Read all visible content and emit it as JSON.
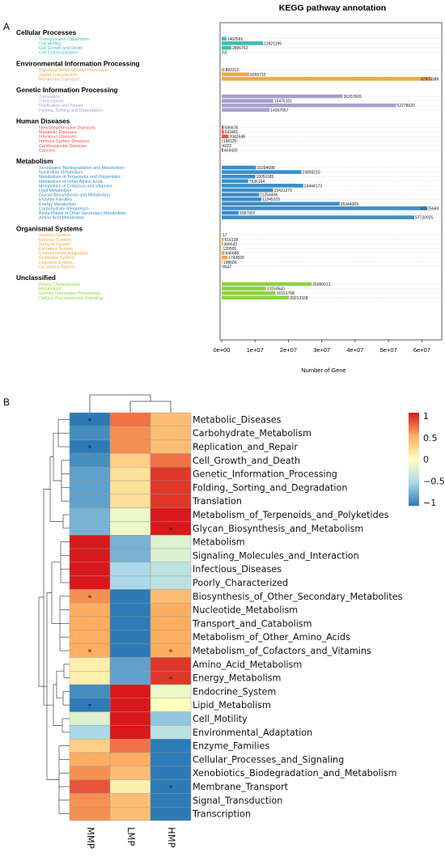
{
  "panel_a_letter": "A",
  "panel_b_letter": "B",
  "chart_data": [
    {
      "type": "bar",
      "orientation": "horizontal",
      "title": "KEGG pathway annotation",
      "xlabel": "Number of Gene",
      "xlim": [
        0,
        65000000
      ],
      "xticks": [
        "0e+00",
        "1e+07",
        "2e+07",
        "3e+07",
        "4e+07",
        "5e+07",
        "6e+07"
      ],
      "groups": [
        {
          "name": "Cellular Processes",
          "color": "#3dbfb3",
          "items": [
            {
              "label": "Transport and Catabolism",
              "value": 1402565
            },
            {
              "label": "Cell Motility",
              "value": 12421195
            },
            {
              "label": "Cell Growth and Death",
              "value": 2896762
            },
            {
              "label": "Cell Communication",
              "value": 53
            }
          ]
        },
        {
          "name": "Environmental Information Processing",
          "color": "#f5a745",
          "items": [
            {
              "label": "Signaling Molecules and Interaction",
              "value": 882212
            },
            {
              "label": "Signal Transduction",
              "value": 8269715
            },
            {
              "label": "Membrane Transport",
              "value": 62903388
            }
          ]
        },
        {
          "name": "Genetic Information Processing",
          "color": "#a89fcc",
          "items": [
            {
              "label": "Translation",
              "value": 36267665
            },
            {
              "label": "Transcription",
              "value": 15476101
            },
            {
              "label": "Replication and Repair",
              "value": 52278620
            },
            {
              "label": "Folding, Sorting and Degradation",
              "value": 14367057
            }
          ]
        },
        {
          "name": "Human Diseases",
          "color": "#e8534a",
          "items": [
            {
              "label": "Neurodegenerative Diseases",
              "value": 595678
            },
            {
              "label": "Metabolic Diseases",
              "value": 643491
            },
            {
              "label": "Infectious Diseases",
              "value": 2042648
            },
            {
              "label": "Immune System Diseases",
              "value": 196130
            },
            {
              "label": "Cardiovascular Diseases",
              "value": 4322
            },
            {
              "label": "Cancers",
              "value": 459420
            }
          ]
        },
        {
          "name": "Metabolism",
          "color": "#3a8fc8",
          "items": [
            {
              "label": "Xenobiotics Biodegradation and Metabolism",
              "value": 10294688
            },
            {
              "label": "Nucleotide Metabolism",
              "value": 23893215
            },
            {
              "label": "Metabolism of Terpenoids and Polyketides",
              "value": 10051185
            },
            {
              "label": "Metabolism of Other Amino Acids",
              "value": 7936164
            },
            {
              "label": "Metabolism of Cofactors and Vitamins",
              "value": 24444173
            },
            {
              "label": "Lipid Metabolism",
              "value": 15431379
            },
            {
              "label": "Glycan Biosynthesis and Metabolism",
              "value": 11254495
            },
            {
              "label": "Enzyme Families",
              "value": 11945315
            },
            {
              "label": "Energy Metabolism",
              "value": 35344309
            },
            {
              "label": "Carbohydrate Metabolism",
              "value": 61525669
            },
            {
              "label": "Biosynthesis of Other Secondary Metabolites",
              "value": 5087001
            },
            {
              "label": "Amino Acid Metabolism",
              "value": 57720925
            }
          ]
        },
        {
          "name": "Organismal Systems",
          "color": "#f0a640",
          "items": [
            {
              "label": "Sensory System",
              "value": 17
            },
            {
              "label": "Nervous System",
              "value": 616128
            },
            {
              "label": "Immune System",
              "value": 366632
            },
            {
              "label": "Excretory System",
              "value": 120505
            },
            {
              "label": "Environmental Adaptation",
              "value": 846688
            },
            {
              "label": "Endocrine System",
              "value": 1743839
            },
            {
              "label": "Digestive System",
              "value": 198606
            },
            {
              "label": "Circulatory System",
              "value": 9047
            }
          ]
        },
        {
          "name": "Unclassified",
          "color": "#8fd13f",
          "items": [
            {
              "label": "Poorly Characterized",
              "value": 26990013
            },
            {
              "label": "Metabolism",
              "value": 13250543
            },
            {
              "label": "Genetic Information Processing",
              "value": 16151768
            },
            {
              "label": "Cellular Processes and Signaling",
              "value": 20213328
            }
          ]
        }
      ]
    },
    {
      "type": "heatmap",
      "columns": [
        "MMP",
        "LMP",
        "HMP"
      ],
      "rows": [
        "Metabolic_Diseases",
        "Carbohydrate_Metabolism",
        "Replication_and_Repair",
        "Cell_Growth_and_Death",
        "Genetic_Information_Processing",
        "Folding,_Sorting_and_Degradation",
        "Translation",
        "Metabolism_of_Terpenoids_and_Polyketides",
        "Glycan_Biosynthesis_and_Metabolism",
        "Metabolism",
        "Signaling_Molecules_and_Interaction",
        "Infectious_Diseases",
        "Poorly_Characterized",
        "Biosynthesis_of_Other_Secondary_Metabolites",
        "Nucleotide_Metabolism",
        "Transport_and_Catabolism",
        "Metabolism_of_Other_Amino_Acids",
        "Metabolism_of_Cofactors_and_Vitamins",
        "Amino_Acid_Metabolism",
        "Energy_Metabolism",
        "Endocrine_System",
        "Lipid_Metabolism",
        "Cell_Motility",
        "Environmental_Adaptation",
        "Enzyme_Families",
        "Cellular_Processes_and_Signaling",
        "Xenobiotics_Biodegradation_and_Metabolism",
        "Membrane_Transport",
        "Signal_Transduction",
        "Transcription"
      ],
      "values": [
        [
          -1.0,
          0.7,
          0.4
        ],
        [
          -0.9,
          0.6,
          0.4
        ],
        [
          -1.0,
          0.6,
          0.4
        ],
        [
          -0.9,
          0.3,
          0.7
        ],
        [
          -0.8,
          0.2,
          0.9
        ],
        [
          -0.8,
          0.2,
          0.9
        ],
        [
          -0.8,
          0.2,
          0.9
        ],
        [
          -0.7,
          -0.1,
          1.0
        ],
        [
          -0.7,
          -0.1,
          1.0
        ],
        [
          1.0,
          -0.7,
          -0.2
        ],
        [
          1.0,
          -0.7,
          -0.2
        ],
        [
          1.0,
          -0.5,
          -0.4
        ],
        [
          1.0,
          -0.5,
          -0.4
        ],
        [
          0.6,
          -1.0,
          0.4
        ],
        [
          0.5,
          -1.0,
          0.5
        ],
        [
          0.5,
          -1.0,
          0.5
        ],
        [
          0.5,
          -1.0,
          0.5
        ],
        [
          0.5,
          -1.0,
          0.5
        ],
        [
          0.1,
          -0.8,
          0.9
        ],
        [
          0.1,
          -0.8,
          0.9
        ],
        [
          -0.9,
          1.0,
          -0.1
        ],
        [
          -1.0,
          1.0,
          0.0
        ],
        [
          -0.2,
          1.0,
          -0.6
        ],
        [
          -0.5,
          1.0,
          -0.4
        ],
        [
          0.3,
          0.7,
          -1.0
        ],
        [
          0.5,
          0.5,
          -1.0
        ],
        [
          0.6,
          0.4,
          -1.0
        ],
        [
          0.8,
          0.1,
          -1.0
        ],
        [
          0.6,
          0.4,
          -1.0
        ],
        [
          0.6,
          0.4,
          -1.0
        ]
      ],
      "significant": [
        [
          0,
          0
        ],
        [
          2,
          0
        ],
        [
          8,
          2
        ],
        [
          13,
          0
        ],
        [
          17,
          0
        ],
        [
          17,
          2
        ],
        [
          19,
          2
        ],
        [
          21,
          0
        ],
        [
          27,
          2
        ]
      ],
      "significance_marker": "*",
      "colorscale": {
        "min": -1,
        "max": 1,
        "stops": [
          "#2c7bb6",
          "#abd9e9",
          "#ffffbf",
          "#fdae61",
          "#d7191c"
        ],
        "ticks": [
          "1",
          "0.5",
          "0",
          "−0.5",
          "−1"
        ]
      }
    }
  ]
}
